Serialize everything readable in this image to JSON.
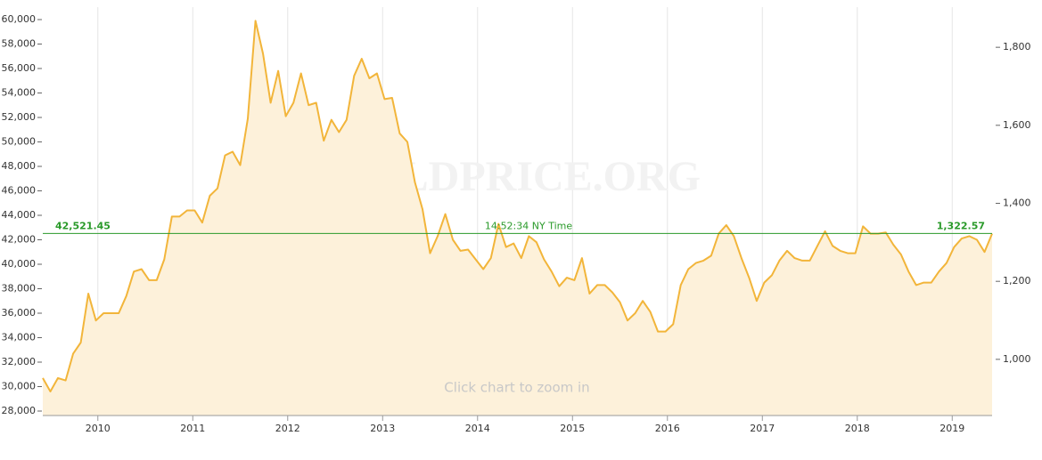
{
  "chart_data": {
    "type": "area",
    "watermark": "GOLDPRICE.ORG",
    "footer": "Click chart to zoom in",
    "x": [
      2009.42,
      2009.5,
      2009.58,
      2009.66,
      2009.74,
      2009.82,
      2009.9,
      2009.98,
      2010.06,
      2010.14,
      2010.22,
      2010.3,
      2010.38,
      2010.46,
      2010.54,
      2010.62,
      2010.7,
      2010.78,
      2010.86,
      2010.94,
      2011.02,
      2011.1,
      2011.18,
      2011.26,
      2011.34,
      2011.42,
      2011.5,
      2011.58,
      2011.66,
      2011.74,
      2011.82,
      2011.9,
      2011.98,
      2012.06,
      2012.14,
      2012.22,
      2012.3,
      2012.38,
      2012.46,
      2012.54,
      2012.62,
      2012.7,
      2012.78,
      2012.86,
      2012.94,
      2013.02,
      2013.1,
      2013.18,
      2013.26,
      2013.34,
      2013.42,
      2013.5,
      2013.58,
      2013.66,
      2013.74,
      2013.82,
      2013.9,
      2013.98,
      2014.06,
      2014.14,
      2014.22,
      2014.3,
      2014.38,
      2014.46,
      2014.54,
      2014.62,
      2014.7,
      2014.78,
      2014.86,
      2014.94,
      2015.02,
      2015.1,
      2015.18,
      2015.26,
      2015.34,
      2015.42,
      2015.5,
      2015.58,
      2015.66,
      2015.74,
      2015.82,
      2015.9,
      2015.98,
      2016.06,
      2016.14,
      2016.22,
      2016.3,
      2016.38,
      2016.46,
      2016.54,
      2016.62,
      2016.7,
      2016.78,
      2016.86,
      2016.94,
      2017.02,
      2017.1,
      2017.18,
      2017.26,
      2017.34,
      2017.42,
      2017.5,
      2017.58,
      2017.66,
      2017.74,
      2017.82,
      2017.9,
      2017.98,
      2018.06,
      2018.14,
      2018.22,
      2018.3,
      2018.38,
      2018.46,
      2018.54,
      2018.62,
      2018.7,
      2018.78,
      2018.86,
      2018.94,
      2019.02,
      2019.1,
      2019.18,
      2019.26,
      2019.34,
      2019.42
    ],
    "series": [
      {
        "color": "#f2b53a",
        "fill": "#fdf1da",
        "values": [
          30700,
          29600,
          30700,
          30500,
          32700,
          33600,
          37600,
          35400,
          36000,
          36000,
          36000,
          37400,
          39400,
          39600,
          38700,
          38700,
          40400,
          43900,
          43900,
          44400,
          44400,
          43400,
          45600,
          46200,
          48900,
          49200,
          48100,
          51900,
          59900,
          57200,
          53200,
          55800,
          52100,
          53200,
          55600,
          53000,
          53200,
          50100,
          51800,
          50800,
          51800,
          55400,
          56800,
          55200,
          55600,
          53500,
          53600,
          50700,
          50000,
          46700,
          44500,
          40900,
          42300,
          44100,
          42000,
          41100,
          41200,
          40400,
          39600,
          40500,
          43300,
          41400,
          41700,
          40500,
          42300,
          41800,
          40400,
          39400,
          38200,
          38900,
          38700,
          40500,
          37600,
          38300,
          38300,
          37700,
          36900,
          35400,
          36000,
          37000,
          36100,
          34500,
          34500,
          35100,
          38300,
          39600,
          40100,
          40300,
          40700,
          42500,
          43200,
          42300,
          40500,
          38900,
          37000,
          38500,
          39100,
          40300,
          41100,
          40500,
          40300,
          40300,
          41500,
          42700,
          41500,
          41100,
          40900,
          40900,
          43100,
          42500,
          42500,
          42600,
          41600,
          40800,
          39400,
          38300,
          38500,
          38500,
          39400,
          40100,
          41400,
          42100,
          42300,
          42000,
          41000,
          42500
        ]
      }
    ],
    "xlim": [
      2009.42,
      2019.42
    ],
    "xticks": [
      2010,
      2011,
      2012,
      2013,
      2014,
      2015,
      2016,
      2017,
      2018,
      2019
    ],
    "ylim": [
      27636,
      61018
    ],
    "yticks": [
      {
        "value": 28000,
        "label": "28,000"
      },
      {
        "value": 30000,
        "label": "30,000"
      },
      {
        "value": 32000,
        "label": "32,000"
      },
      {
        "value": 34000,
        "label": "34,000"
      },
      {
        "value": 36000,
        "label": "36,000"
      },
      {
        "value": 38000,
        "label": "38,000"
      },
      {
        "value": 40000,
        "label": "40,000"
      },
      {
        "value": 42000,
        "label": "42,000"
      },
      {
        "value": 44000,
        "label": "44,000"
      },
      {
        "value": 46000,
        "label": "46,000"
      },
      {
        "value": 48000,
        "label": "48,000"
      },
      {
        "value": 50000,
        "label": "50,000"
      },
      {
        "value": 52000,
        "label": "52,000"
      },
      {
        "value": 54000,
        "label": "54,000"
      },
      {
        "value": 56000,
        "label": "56,000"
      },
      {
        "value": 58000,
        "label": "58,000"
      },
      {
        "value": 60000,
        "label": "60,000"
      }
    ],
    "y2lim": [
      856,
      1903
    ],
    "y2ticks": [
      {
        "value": 1000,
        "label": "1,000"
      },
      {
        "value": 1200,
        "label": "1,200"
      },
      {
        "value": 1400,
        "label": "1,400"
      },
      {
        "value": 1600,
        "label": "1,600"
      },
      {
        "value": 1800,
        "label": "1,800"
      }
    ],
    "grid": "vertical",
    "reference_line": {
      "value": 42521.45,
      "label": "42,521.45",
      "y2_value": 1322.57,
      "y2_label": "1,322.57",
      "time": "14:52:34 NY Time",
      "color": "#2a9a2a"
    }
  }
}
